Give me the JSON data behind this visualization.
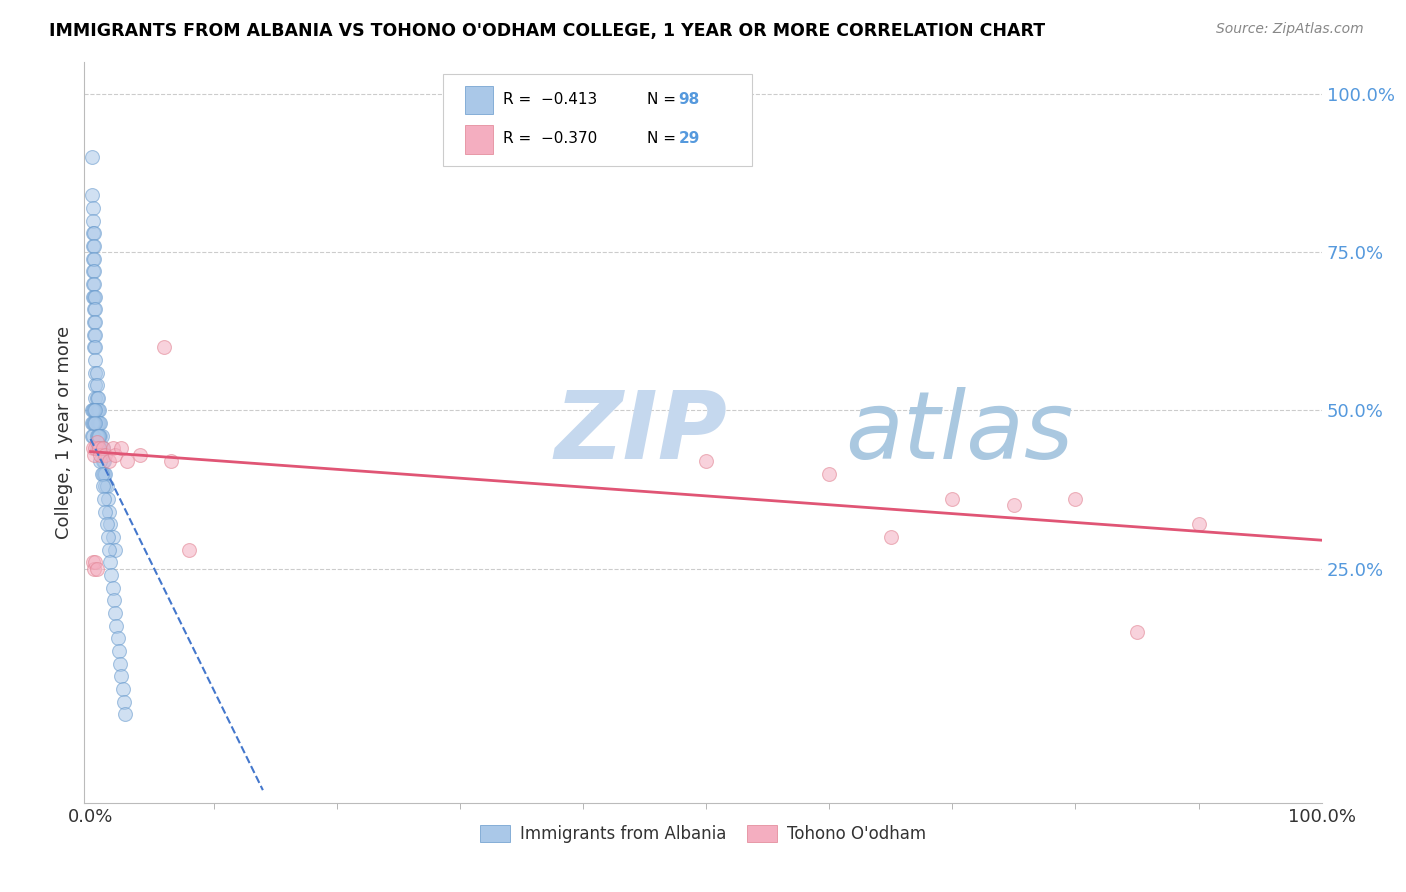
{
  "title": "IMMIGRANTS FROM ALBANIA VS TOHONO O'ODHAM COLLEGE, 1 YEAR OR MORE CORRELATION CHART",
  "source": "Source: ZipAtlas.com",
  "ylabel": "College, 1 year or more",
  "ymin": -0.12,
  "ymax": 1.05,
  "xmin": -0.005,
  "xmax": 1.0,
  "ytick_values": [
    0.25,
    0.5,
    0.75,
    1.0
  ],
  "ytick_labels": [
    "25.0%",
    "50.0%",
    "75.0%",
    "100.0%"
  ],
  "right_ytick_color": "#5599dd",
  "blue_scatter_x": [
    0.001,
    0.001,
    0.002,
    0.002,
    0.002,
    0.002,
    0.002,
    0.002,
    0.002,
    0.002,
    0.003,
    0.003,
    0.003,
    0.003,
    0.003,
    0.003,
    0.003,
    0.003,
    0.003,
    0.003,
    0.004,
    0.004,
    0.004,
    0.004,
    0.004,
    0.004,
    0.004,
    0.004,
    0.004,
    0.005,
    0.005,
    0.005,
    0.005,
    0.005,
    0.006,
    0.006,
    0.006,
    0.006,
    0.007,
    0.007,
    0.007,
    0.008,
    0.008,
    0.008,
    0.009,
    0.009,
    0.01,
    0.01,
    0.01,
    0.011,
    0.011,
    0.012,
    0.012,
    0.013,
    0.014,
    0.015,
    0.016,
    0.018,
    0.02,
    0.001,
    0.001,
    0.001,
    0.002,
    0.002,
    0.002,
    0.003,
    0.003,
    0.004,
    0.004,
    0.005,
    0.005,
    0.006,
    0.006,
    0.007,
    0.007,
    0.008,
    0.009,
    0.01,
    0.011,
    0.012,
    0.013,
    0.014,
    0.015,
    0.016,
    0.017,
    0.018,
    0.019,
    0.02,
    0.021,
    0.022,
    0.023,
    0.024,
    0.025,
    0.026,
    0.027,
    0.028
  ],
  "blue_scatter_y": [
    0.9,
    0.84,
    0.82,
    0.8,
    0.78,
    0.76,
    0.74,
    0.72,
    0.7,
    0.68,
    0.78,
    0.76,
    0.74,
    0.72,
    0.7,
    0.68,
    0.66,
    0.64,
    0.62,
    0.6,
    0.68,
    0.66,
    0.64,
    0.62,
    0.6,
    0.58,
    0.56,
    0.54,
    0.52,
    0.56,
    0.54,
    0.52,
    0.5,
    0.48,
    0.52,
    0.5,
    0.48,
    0.46,
    0.5,
    0.48,
    0.46,
    0.48,
    0.46,
    0.44,
    0.46,
    0.44,
    0.44,
    0.42,
    0.4,
    0.42,
    0.4,
    0.4,
    0.38,
    0.38,
    0.36,
    0.34,
    0.32,
    0.3,
    0.28,
    0.5,
    0.48,
    0.46,
    0.5,
    0.48,
    0.46,
    0.5,
    0.48,
    0.5,
    0.48,
    0.46,
    0.44,
    0.46,
    0.44,
    0.46,
    0.44,
    0.42,
    0.4,
    0.38,
    0.36,
    0.34,
    0.32,
    0.3,
    0.28,
    0.26,
    0.24,
    0.22,
    0.2,
    0.18,
    0.16,
    0.14,
    0.12,
    0.1,
    0.08,
    0.06,
    0.04,
    0.02
  ],
  "pink_scatter_x": [
    0.002,
    0.003,
    0.004,
    0.005,
    0.007,
    0.008,
    0.01,
    0.012,
    0.015,
    0.018,
    0.02,
    0.002,
    0.003,
    0.004,
    0.005,
    0.025,
    0.03,
    0.04,
    0.06,
    0.065,
    0.08,
    0.5,
    0.6,
    0.65,
    0.7,
    0.75,
    0.8,
    0.85,
    0.9
  ],
  "pink_scatter_y": [
    0.44,
    0.43,
    0.44,
    0.45,
    0.44,
    0.43,
    0.44,
    0.43,
    0.42,
    0.44,
    0.43,
    0.26,
    0.25,
    0.26,
    0.25,
    0.44,
    0.42,
    0.43,
    0.6,
    0.42,
    0.28,
    0.42,
    0.4,
    0.3,
    0.36,
    0.35,
    0.36,
    0.15,
    0.32
  ],
  "blue_line_x0": 0.0,
  "blue_line_x1": 0.14,
  "blue_line_y0": 0.455,
  "blue_line_y1": -0.1,
  "pink_line_x0": 0.0,
  "pink_line_x1": 1.0,
  "pink_line_y0": 0.435,
  "pink_line_y1": 0.295,
  "scatter_alpha": 0.55,
  "scatter_size": 100,
  "blue_color": "#aac8e8",
  "blue_edge_color": "#6699cc",
  "pink_color": "#f4aec0",
  "pink_edge_color": "#e08090",
  "blue_line_color": "#4477cc",
  "pink_line_color": "#e05575",
  "watermark_zip_color": "#c5d8ee",
  "watermark_atlas_color": "#aac8e0",
  "grid_color": "#cccccc",
  "legend_box_color": "#eeeeee"
}
